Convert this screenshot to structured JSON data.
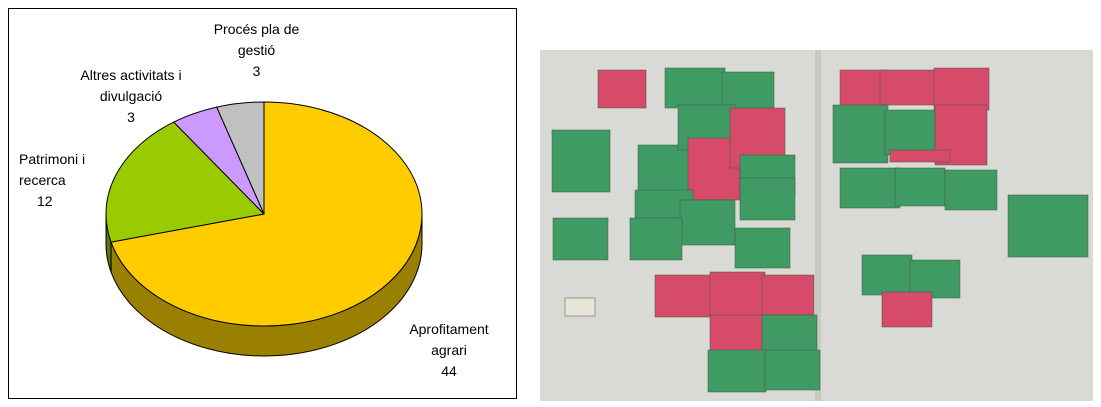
{
  "chart_data": {
    "type": "pie",
    "categories": [
      "Aprofitament agrari",
      "Patrimoni i recerca",
      "Altres activitats i divulgació",
      "Procés pla de gestió"
    ],
    "values": [
      44,
      12,
      3,
      3
    ],
    "colors": [
      "#FFCC00",
      "#99CC00",
      "#CC99FF",
      "#C0C0C0"
    ],
    "side_colors": [
      "#998000",
      "#5C7A00",
      "#7A5C99",
      "#808080"
    ]
  }
}
